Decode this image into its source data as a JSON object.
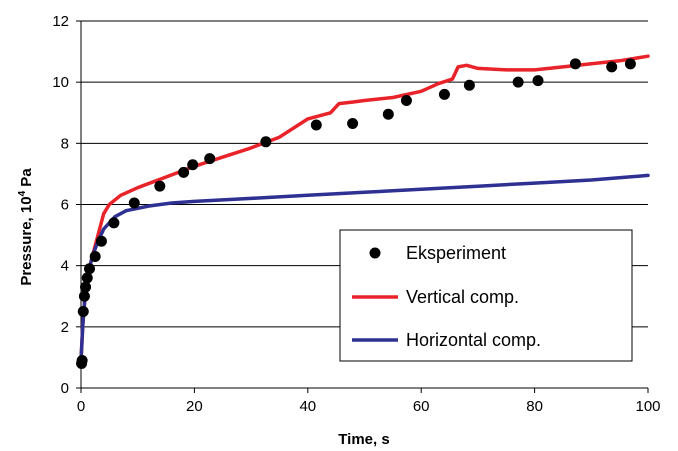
{
  "chart_data": {
    "type": "line",
    "title": "",
    "xlabel": "Time, s",
    "ylabel_main": "Pressure, 10",
    "ylabel_sup": "4",
    "ylabel_unit": " Pa",
    "xlim": [
      0,
      100
    ],
    "ylim": [
      0,
      12
    ],
    "xticks": [
      0,
      20,
      40,
      60,
      80,
      100
    ],
    "yticks": [
      0,
      2,
      4,
      6,
      8,
      10,
      12
    ],
    "grid": "horizontal",
    "legend_position": "bottom-right",
    "series": [
      {
        "name": "Eksperiment",
        "kind": "scatter",
        "color": "#000000",
        "points": [
          [
            0.1,
            0.8
          ],
          [
            0.2,
            0.9
          ],
          [
            0.4,
            2.5
          ],
          [
            0.6,
            3.0
          ],
          [
            0.8,
            3.3
          ],
          [
            1.1,
            3.6
          ],
          [
            1.5,
            3.9
          ],
          [
            2.5,
            4.3
          ],
          [
            3.6,
            4.8
          ],
          [
            5.8,
            5.4
          ],
          [
            9.4,
            6.05
          ],
          [
            13.9,
            6.6
          ],
          [
            18.1,
            7.05
          ],
          [
            19.7,
            7.3
          ],
          [
            22.7,
            7.5
          ],
          [
            32.6,
            8.05
          ],
          [
            41.5,
            8.6
          ],
          [
            47.9,
            8.65
          ],
          [
            54.2,
            8.95
          ],
          [
            57.4,
            9.4
          ],
          [
            64.1,
            9.6
          ],
          [
            68.5,
            9.9
          ],
          [
            77.1,
            10.0
          ],
          [
            80.6,
            10.05
          ],
          [
            87.2,
            10.6
          ],
          [
            93.6,
            10.5
          ],
          [
            96.9,
            10.6
          ]
        ]
      },
      {
        "name": "Vertical comp.",
        "kind": "line",
        "color": "#e8232a",
        "points": [
          [
            0,
            0.9
          ],
          [
            0.3,
            2.0
          ],
          [
            0.7,
            3.0
          ],
          [
            1.2,
            3.7
          ],
          [
            2,
            4.3
          ],
          [
            3,
            5.0
          ],
          [
            4,
            5.7
          ],
          [
            5,
            6.0
          ],
          [
            7,
            6.3
          ],
          [
            10,
            6.55
          ],
          [
            15,
            6.9
          ],
          [
            20,
            7.25
          ],
          [
            25,
            7.55
          ],
          [
            30,
            7.85
          ],
          [
            35,
            8.2
          ],
          [
            40,
            8.8
          ],
          [
            44,
            9.0
          ],
          [
            45.5,
            9.3
          ],
          [
            48,
            9.35
          ],
          [
            50,
            9.4
          ],
          [
            55,
            9.5
          ],
          [
            60,
            9.7
          ],
          [
            63,
            9.95
          ],
          [
            65.5,
            10.1
          ],
          [
            66.5,
            10.5
          ],
          [
            68,
            10.55
          ],
          [
            70,
            10.45
          ],
          [
            75,
            10.4
          ],
          [
            80,
            10.4
          ],
          [
            85,
            10.5
          ],
          [
            90,
            10.6
          ],
          [
            95,
            10.7
          ],
          [
            100,
            10.85
          ]
        ]
      },
      {
        "name": "Horizontal comp.",
        "kind": "line",
        "color": "#2e3192",
        "points": [
          [
            0,
            0.9
          ],
          [
            0.3,
            2.0
          ],
          [
            0.7,
            3.0
          ],
          [
            1.2,
            3.7
          ],
          [
            2,
            4.3
          ],
          [
            3,
            4.8
          ],
          [
            4,
            5.2
          ],
          [
            6,
            5.6
          ],
          [
            8,
            5.8
          ],
          [
            12,
            5.95
          ],
          [
            16,
            6.05
          ],
          [
            20,
            6.1
          ],
          [
            30,
            6.2
          ],
          [
            40,
            6.3
          ],
          [
            50,
            6.4
          ],
          [
            60,
            6.5
          ],
          [
            70,
            6.6
          ],
          [
            80,
            6.7
          ],
          [
            90,
            6.8
          ],
          [
            100,
            6.95
          ]
        ]
      }
    ]
  }
}
